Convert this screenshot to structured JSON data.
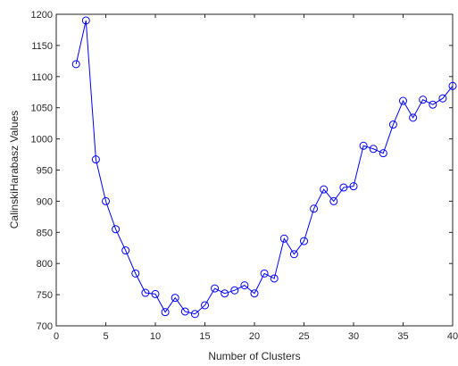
{
  "chart_data": {
    "type": "line",
    "title": "",
    "xlabel": "Number of Clusters",
    "ylabel": "CalinskiHarabasz Values",
    "xlim": [
      0,
      40
    ],
    "ylim": [
      700,
      1200
    ],
    "xticks": [
      0,
      5,
      10,
      15,
      20,
      25,
      30,
      35,
      40
    ],
    "yticks": [
      700,
      750,
      800,
      850,
      900,
      950,
      1000,
      1050,
      1100,
      1150,
      1200
    ],
    "grid": false,
    "marker": "circle",
    "colors": {
      "line": "#0000ff",
      "axis": "#262626"
    },
    "series": [
      {
        "x": [
          2,
          3,
          4,
          5,
          6,
          7,
          8,
          9,
          10,
          11,
          12,
          13,
          14,
          15,
          16,
          17,
          18,
          19,
          20,
          21,
          22,
          23,
          24,
          25,
          26,
          27,
          28,
          29,
          30,
          31,
          32,
          33,
          34,
          35,
          36,
          37,
          38,
          39,
          40
        ],
        "y": [
          1120,
          1190,
          967,
          900,
          855,
          821,
          784,
          753,
          751,
          722,
          745,
          723,
          719,
          733,
          760,
          752,
          757,
          765,
          752,
          784,
          776,
          840,
          815,
          836,
          888,
          919,
          900,
          922,
          924,
          989,
          984,
          977,
          1023,
          1061,
          1034,
          1063,
          1055,
          1065,
          1085
        ]
      }
    ]
  }
}
